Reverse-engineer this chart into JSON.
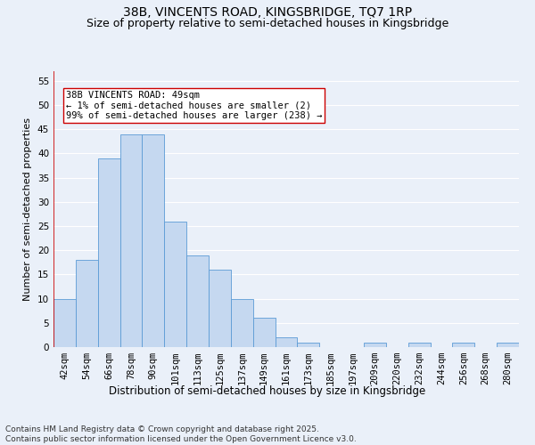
{
  "title": "38B, VINCENTS ROAD, KINGSBRIDGE, TQ7 1RP",
  "subtitle": "Size of property relative to semi-detached houses in Kingsbridge",
  "xlabel": "Distribution of semi-detached houses by size in Kingsbridge",
  "ylabel": "Number of semi-detached properties",
  "categories": [
    "42sqm",
    "54sqm",
    "66sqm",
    "78sqm",
    "90sqm",
    "101sqm",
    "113sqm",
    "125sqm",
    "137sqm",
    "149sqm",
    "161sqm",
    "173sqm",
    "185sqm",
    "197sqm",
    "209sqm",
    "220sqm",
    "232sqm",
    "244sqm",
    "256sqm",
    "268sqm",
    "280sqm"
  ],
  "values": [
    10,
    18,
    39,
    44,
    44,
    26,
    19,
    16,
    10,
    6,
    2,
    1,
    0,
    0,
    1,
    0,
    1,
    0,
    1,
    0,
    1
  ],
  "bar_color": "#c5d8f0",
  "bar_edge_color": "#5b9bd5",
  "vline_color": "#cc0000",
  "annotation_text": "38B VINCENTS ROAD: 49sqm\n← 1% of semi-detached houses are smaller (2)\n99% of semi-detached houses are larger (238) →",
  "annotation_box_color": "#ffffff",
  "annotation_box_edge": "#cc0000",
  "ylim": [
    0,
    57
  ],
  "yticks": [
    0,
    5,
    10,
    15,
    20,
    25,
    30,
    35,
    40,
    45,
    50,
    55
  ],
  "background_color": "#eaf0f9",
  "grid_color": "#ffffff",
  "footnote": "Contains HM Land Registry data © Crown copyright and database right 2025.\nContains public sector information licensed under the Open Government Licence v3.0.",
  "title_fontsize": 10,
  "subtitle_fontsize": 9,
  "xlabel_fontsize": 8.5,
  "ylabel_fontsize": 8,
  "tick_fontsize": 7.5,
  "annotation_fontsize": 7.5,
  "footnote_fontsize": 6.5
}
